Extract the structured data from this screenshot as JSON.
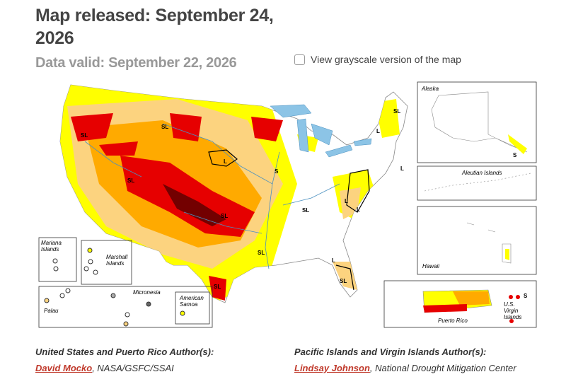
{
  "header": {
    "title": "Map released: September 24, 2026",
    "subtitle": "Data valid: September 22, 2026",
    "grayscale_toggle": "View grayscale version of the map"
  },
  "map": {
    "insets": {
      "alaska": "Alaska",
      "aleutian": "Aleutian Islands",
      "hawaii": "Hawaii",
      "puerto_rico": "Puerto Rico",
      "virgin_islands": "U.S. Virgin Islands",
      "mariana": "Mariana Islands",
      "marshall": "Marshall Islands",
      "palau": "Palau",
      "micronesia": "Micronesia",
      "samoa": "American Samoa"
    },
    "impact_labels": [
      "SL",
      "SL",
      "L",
      "S",
      "SL",
      "SL",
      "SL",
      "SL",
      "SL",
      "L",
      "L",
      "L",
      "L",
      "L",
      "SL",
      "SL",
      "S",
      "S",
      "S"
    ]
  },
  "authors": [
    {
      "heading": "United States and Puerto Rico Author(s):",
      "name": "David Mocko",
      "affiliation": ", NASA/GSFC/SSAI"
    },
    {
      "heading": "Pacific Islands and Virgin Islands Author(s):",
      "name": "Lindsay Johnson",
      "affiliation": ", National Drought Mitigation Center"
    }
  ]
}
